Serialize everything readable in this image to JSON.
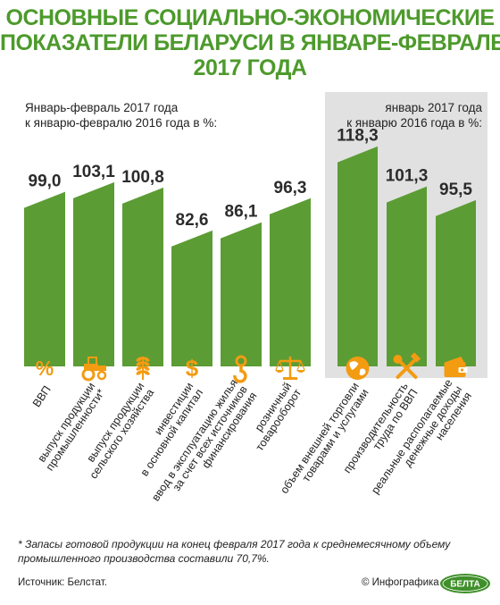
{
  "title": {
    "line1": "ОСНОВНЫЕ СОЦИАЛЬНО-ЭКОНОМИЧЕСКИЕ",
    "line2": "ПОКАЗАТЕЛИ БЕЛАРУСИ В ЯНВАРЕ-ФЕВРАЛЕ",
    "line3": "2017 ГОДА"
  },
  "left_subtitle": {
    "line1": "Январь-февраль 2017 года",
    "line2": "к январю-февралю 2016 года в %:"
  },
  "right_subtitle": {
    "line1": "январь 2017 года",
    "line2": "к январю 2016 года в %:"
  },
  "colors": {
    "title": "#4d9a2c",
    "bar": "#5c9c34",
    "icon": "#f39b11",
    "right_panel": "#e1e1e1"
  },
  "chart_data": {
    "type": "bar",
    "series": [
      {
        "categories": [
          "ВВП",
          "выпуск продукции промышленности*",
          "выпуск продукции сельского хозяйства",
          "инвестиции в основной капитал",
          "ввод в эксплуатацию жилья за счет всех источников финансирования",
          "розничный товарооборот"
        ],
        "values": [
          99.0,
          103.1,
          100.8,
          82.6,
          86.1,
          96.3
        ],
        "value_labels": [
          "99,0",
          "103,1",
          "100,8",
          "82,6",
          "86,1",
          "96,3"
        ],
        "category_lines": [
          [
            "ВВП"
          ],
          [
            "выпуск продукции",
            "промышленности*"
          ],
          [
            "выпуск продукции",
            "сельского хозяйства"
          ],
          [
            "инвестиции",
            "в основной капитал"
          ],
          [
            "ввод в эксплуатацию жилья",
            "за счет всех источников",
            "финансирования"
          ],
          [
            "розничный",
            "товарооборот"
          ]
        ],
        "icons": [
          "percent-icon",
          "tractor-icon",
          "wheat-icon",
          "dollar-icon",
          "crane-hook-icon",
          "scales-icon"
        ]
      },
      {
        "categories": [
          "объем внешней торговли товарами и услугами",
          "производительность труда по ВВП",
          "реальные располагаемые денежные доходы населения"
        ],
        "values": [
          118.3,
          101.3,
          95.5
        ],
        "value_labels": [
          "118,3",
          "101,3",
          "95,5"
        ],
        "category_lines": [
          [
            "объем внешней торговли",
            "товарами и услугами"
          ],
          [
            "производительность",
            "труда по ВВП"
          ],
          [
            "реальные располагаемые",
            "денежные доходы",
            "населения"
          ]
        ],
        "icons": [
          "globe-icon",
          "tools-icon",
          "wallet-icon"
        ]
      }
    ]
  },
  "footnote": {
    "line1": "* Запасы готовой продукции на конец февраля 2017 года к среднемесячному объему",
    "line2": "промышленного производства составили 70,7%."
  },
  "source": "Источник: Белстат.",
  "credit": "© Инфографика",
  "logo_text": "БЕЛТА"
}
